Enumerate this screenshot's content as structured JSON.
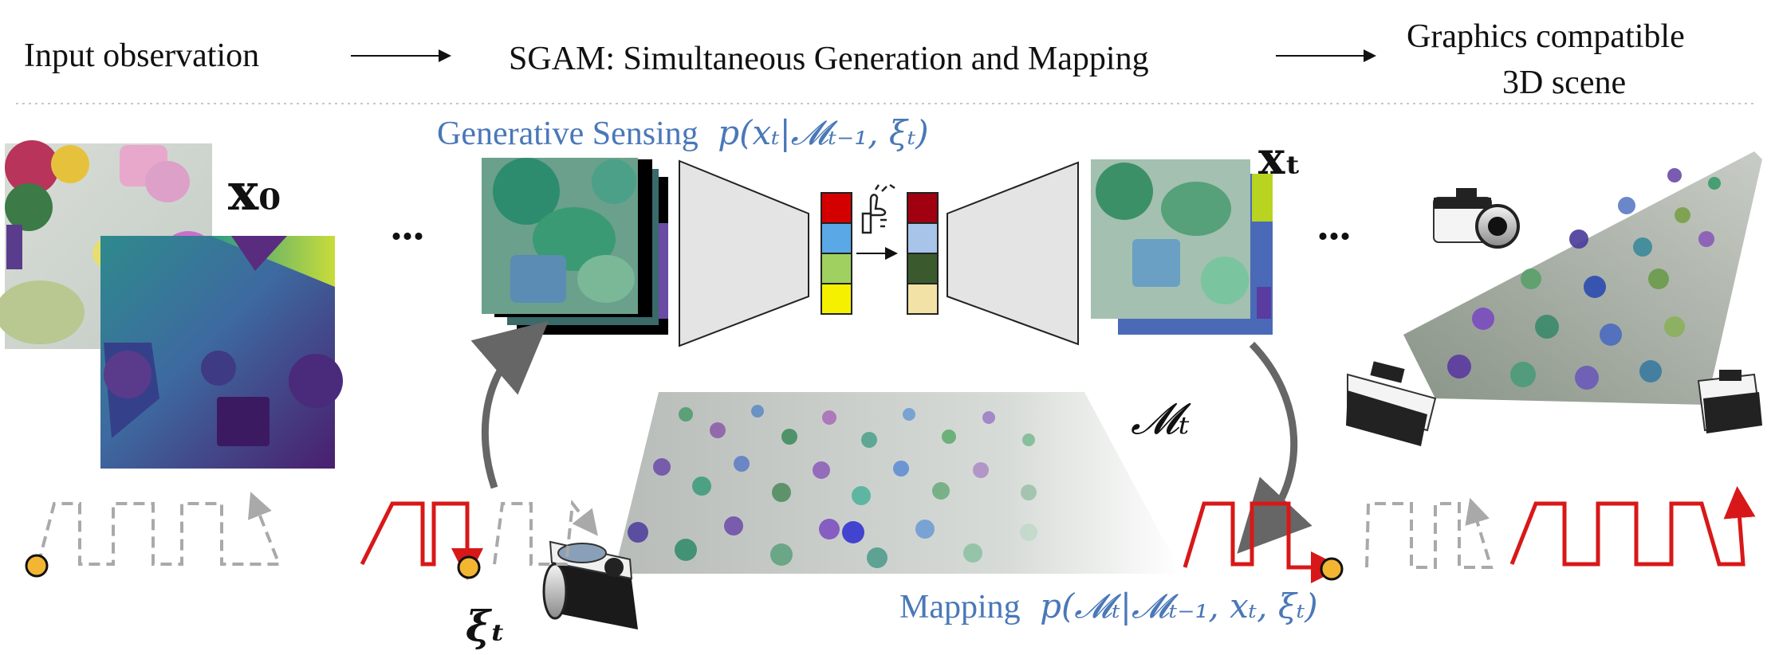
{
  "header": {
    "left": "Input observation",
    "center": "SGAM: Simultaneous Generation and Mapping",
    "right_line1": "Graphics compatible",
    "right_line2": "3D scene"
  },
  "sensing": {
    "label": "Generative Sensing",
    "formula": "p(xₜ|𝓜ₜ₋₁, ξₜ)"
  },
  "mapping": {
    "label": "Mapping",
    "formula": "p(𝓜ₜ|𝓜ₜ₋₁, xₜ, ξₜ)"
  },
  "symbols": {
    "x0": "x₀",
    "xt": "xₜ",
    "Mt": "𝓜ₜ",
    "xit": "ξₜ",
    "ellipsis": "..."
  },
  "colors": {
    "trajectory_active": "#d81818",
    "trajectory_future": "#a9a9a9",
    "pose_marker": "#f2b632",
    "arrow_gray": "#666666",
    "text_blue": "#4a78b8",
    "latent_in": [
      "#d40000",
      "#5aa8e6",
      "#9fd060",
      "#f4f000"
    ],
    "latent_out": [
      "#a00010",
      "#a8c4e8",
      "#3a5a2e",
      "#f2e2a6"
    ]
  }
}
